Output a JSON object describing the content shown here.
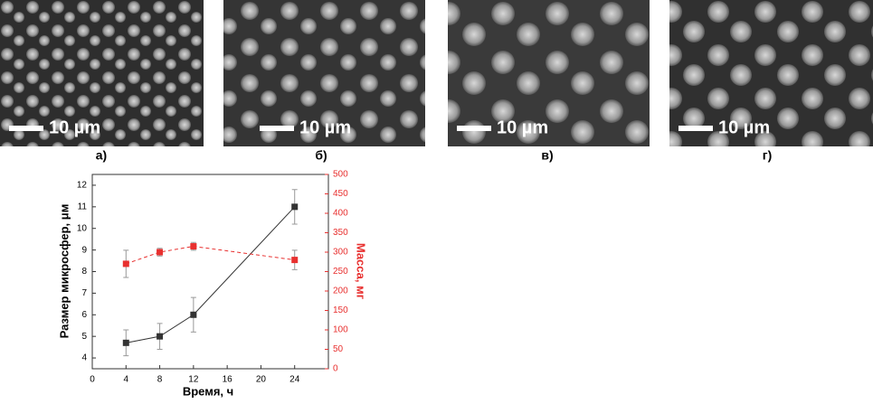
{
  "panels": [
    {
      "label": "а)",
      "scale": "10 µm"
    },
    {
      "label": "б)",
      "scale": "10 µm"
    },
    {
      "label": "в)",
      "scale": "10 µm"
    },
    {
      "label": "г)",
      "scale": "10 µm"
    }
  ],
  "chart_data": {
    "type": "line",
    "xlabel": "Время, ч",
    "ylabel": "Размер микросфер, μм",
    "y2label": "Масса, мг",
    "x": [
      4,
      8,
      12,
      24
    ],
    "xlim": [
      0,
      28
    ],
    "xticks": [
      0,
      4,
      8,
      12,
      16,
      20,
      24
    ],
    "ylim": [
      3.5,
      12.5
    ],
    "yticks": [
      4,
      5,
      6,
      7,
      8,
      9,
      10,
      11,
      12
    ],
    "y2lim": [
      0,
      500
    ],
    "y2ticks": [
      0,
      50,
      100,
      150,
      200,
      250,
      300,
      350,
      400,
      450,
      500
    ],
    "series": [
      {
        "color": "#333333",
        "values": [
          4.7,
          5.0,
          6.0,
          11.0
        ],
        "errors": [
          0.6,
          0.6,
          0.8,
          0.8
        ],
        "dash": false
      },
      {
        "color": "#e8302f",
        "axis": "y2",
        "values": [
          270,
          300,
          315,
          280
        ],
        "errors": [
          35,
          10,
          10,
          25
        ],
        "dash": true
      }
    ]
  }
}
